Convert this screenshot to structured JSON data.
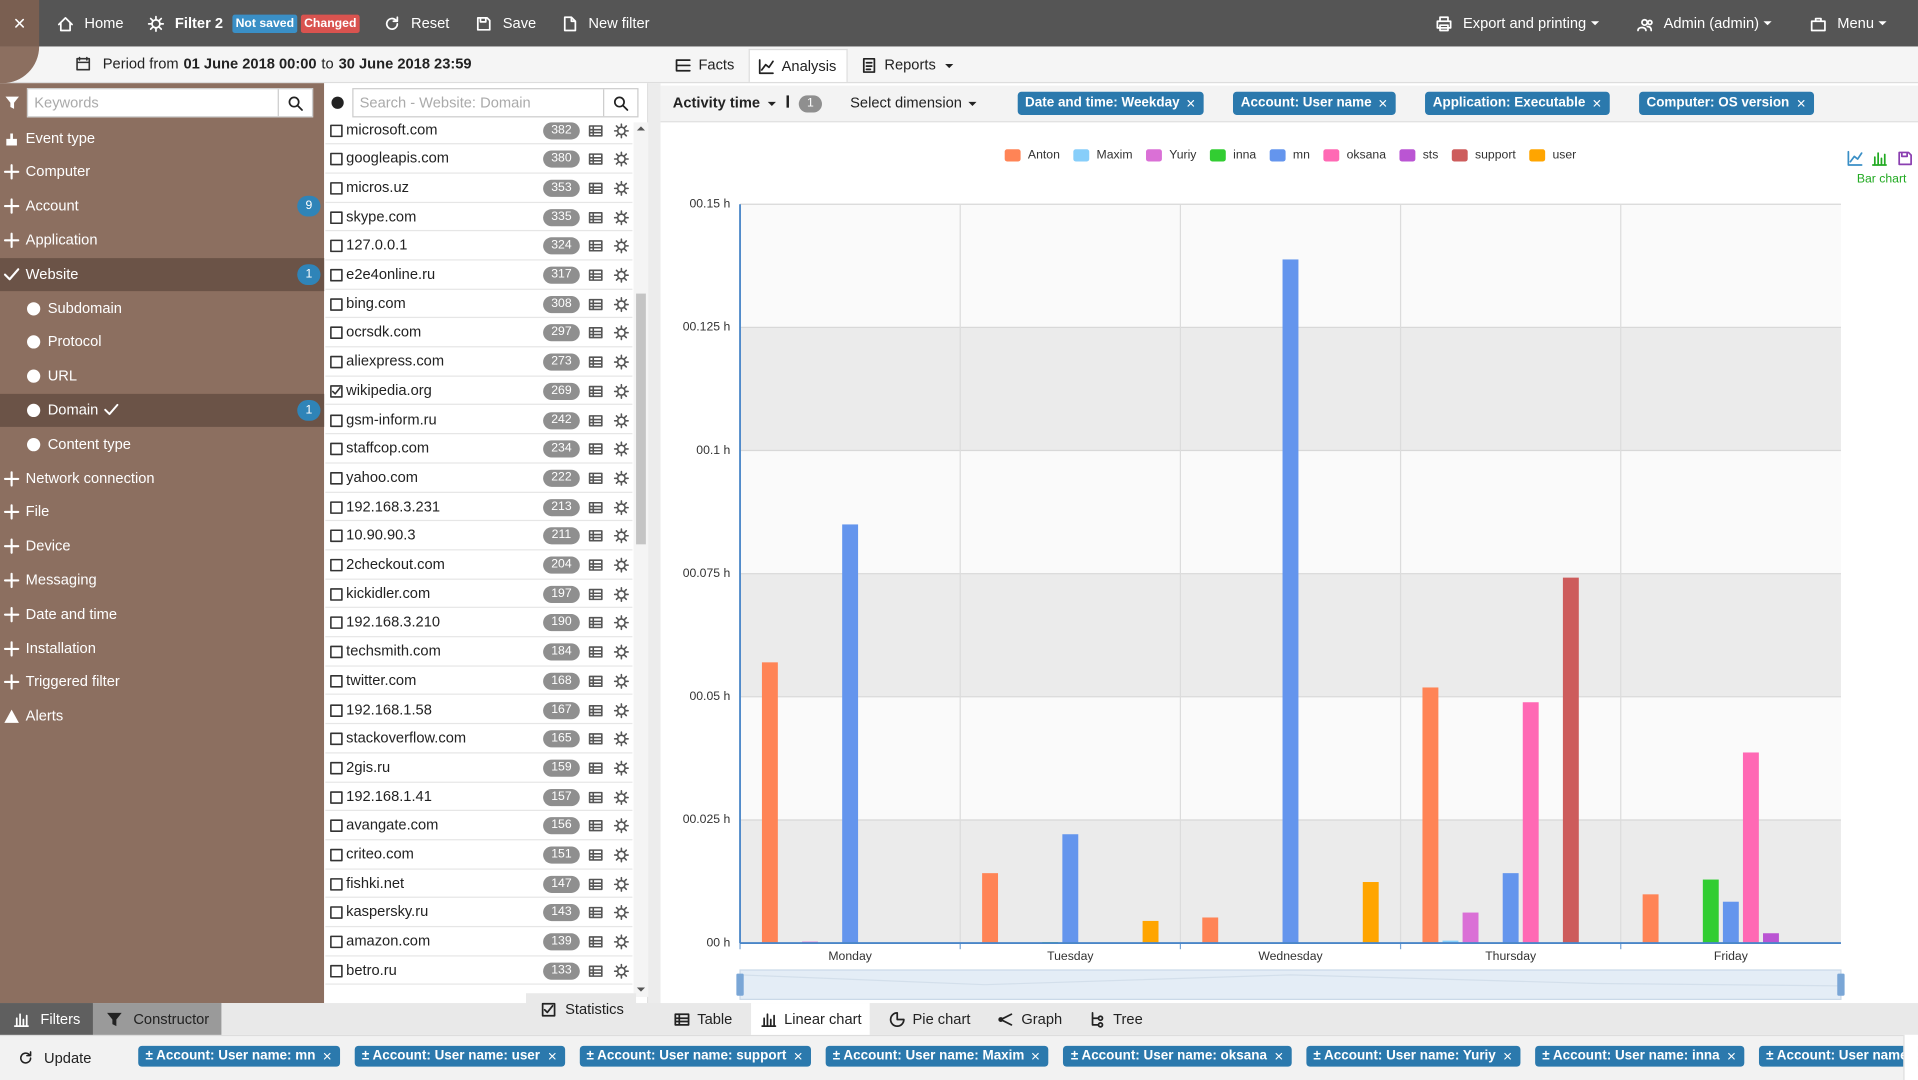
{
  "toolbar": {
    "home": "Home",
    "filter": "Filter 2",
    "not_saved": "Not saved",
    "changed": "Changed",
    "reset": "Reset",
    "save": "Save",
    "new_filter": "New filter",
    "export": "Export and printing",
    "admin": "Admin (admin)",
    "menu": "Menu"
  },
  "period": {
    "from": "Period from",
    "start": "01 June 2018 00:00",
    "to": "to",
    "end": "30 June 2018 23:59"
  },
  "sidebar": {
    "search_placeholder": "Keywords",
    "items": [
      {
        "label": "Event type"
      },
      {
        "label": "Computer"
      },
      {
        "label": "Account",
        "badge": 9
      },
      {
        "label": "Application"
      },
      {
        "label": "Website",
        "badge": 1,
        "checked": true,
        "children": [
          {
            "label": "Subdomain"
          },
          {
            "label": "Protocol"
          },
          {
            "label": "URL"
          },
          {
            "label": "Domain",
            "badge": 1,
            "checked": true
          },
          {
            "label": "Content type"
          }
        ]
      },
      {
        "label": "Network connection"
      },
      {
        "label": "File"
      },
      {
        "label": "Device"
      },
      {
        "label": "Messaging"
      },
      {
        "label": "Date and time"
      },
      {
        "label": "Installation"
      },
      {
        "label": "Triggered filter"
      },
      {
        "label": "Alerts"
      }
    ]
  },
  "domains": {
    "search_placeholder": "Search - Website: Domain",
    "items": [
      {
        "name": "microsoft.com",
        "count": 382
      },
      {
        "name": "googleapis.com",
        "count": 380
      },
      {
        "name": "micros.uz",
        "count": 353
      },
      {
        "name": "skype.com",
        "count": 335
      },
      {
        "name": "127.0.0.1",
        "count": 324
      },
      {
        "name": "e2e4online.ru",
        "count": 317
      },
      {
        "name": "bing.com",
        "count": 308
      },
      {
        "name": "ocrsdk.com",
        "count": 297
      },
      {
        "name": "aliexpress.com",
        "count": 273
      },
      {
        "name": "wikipedia.org",
        "count": 269,
        "checked": true
      },
      {
        "name": "gsm-inform.ru",
        "count": 242
      },
      {
        "name": "staffcop.com",
        "count": 234
      },
      {
        "name": "yahoo.com",
        "count": 222
      },
      {
        "name": "192.168.3.231",
        "count": 213
      },
      {
        "name": "10.90.90.3",
        "count": 211
      },
      {
        "name": "2checkout.com",
        "count": 204
      },
      {
        "name": "kickidler.com",
        "count": 197
      },
      {
        "name": "192.168.3.210",
        "count": 190
      },
      {
        "name": "techsmith.com",
        "count": 184
      },
      {
        "name": "twitter.com",
        "count": 168
      },
      {
        "name": "192.168.1.58",
        "count": 167
      },
      {
        "name": "stackoverflow.com",
        "count": 165
      },
      {
        "name": "2gis.ru",
        "count": 159
      },
      {
        "name": "192.168.1.41",
        "count": 157
      },
      {
        "name": "avangate.com",
        "count": 156
      },
      {
        "name": "criteo.com",
        "count": 151
      },
      {
        "name": "fishki.net",
        "count": 147
      },
      {
        "name": "kaspersky.ru",
        "count": 143
      },
      {
        "name": "amazon.com",
        "count": 139
      },
      {
        "name": "betro.ru",
        "count": 133
      }
    ]
  },
  "tabs": {
    "items": [
      "Facts",
      "Analysis",
      "Reports"
    ],
    "active": 1
  },
  "analysis": {
    "measure": "Activity time",
    "sort_count": 1,
    "select_dimension": "Select dimension",
    "dimensions": [
      "Date and time: Weekday",
      "Account: User name",
      "Application: Executable",
      "Computer: OS version"
    ]
  },
  "chart_data": {
    "type": "bar",
    "view_label": "Bar chart",
    "categories": [
      "Monday",
      "Tuesday",
      "Wednesday",
      "Thursday",
      "Friday"
    ],
    "series": [
      {
        "name": "Anton",
        "color": "#ff8456",
        "values": [
          0.057,
          0.0142,
          0.0052,
          0.0519,
          0.0099
        ]
      },
      {
        "name": "Maxim",
        "color": "#87cefa",
        "values": [
          0,
          0,
          0,
          0.0005,
          0
        ]
      },
      {
        "name": "Yuriy",
        "color": "#da70d6",
        "values": [
          0.0003,
          0,
          0,
          0.0062,
          0
        ]
      },
      {
        "name": "inna",
        "color": "#32cd32",
        "values": [
          0,
          0.0002,
          0,
          0,
          0.0129
        ]
      },
      {
        "name": "mn",
        "color": "#6495ed",
        "values": [
          0.085,
          0.0221,
          0.1388,
          0.0142,
          0.0084
        ]
      },
      {
        "name": "oksana",
        "color": "#ff69b4",
        "values": [
          0,
          0,
          0,
          0.0489,
          0.0387
        ]
      },
      {
        "name": "sts",
        "color": "#ba55d3",
        "values": [
          0,
          0,
          0,
          0,
          0.002
        ]
      },
      {
        "name": "support",
        "color": "#cd5c5c",
        "values": [
          0,
          0,
          0,
          0.0742,
          0
        ]
      },
      {
        "name": "user",
        "color": "#ffa500",
        "values": [
          0,
          0.0045,
          0.0124,
          0,
          0
        ]
      }
    ],
    "ylim": [
      0,
      0.15
    ],
    "yticks": [
      {
        "value": 0,
        "label": "00 h"
      },
      {
        "value": 0.025,
        "label": "00.025 h"
      },
      {
        "value": 0.05,
        "label": "00.05 h"
      },
      {
        "value": 0.075,
        "label": "00.075 h"
      },
      {
        "value": 0.1,
        "label": "00.1 h"
      },
      {
        "value": 0.125,
        "label": "00.125 h"
      },
      {
        "value": 0.15,
        "label": "00.15 h"
      }
    ],
    "grid": true,
    "legend": "top"
  },
  "view_tabs": {
    "items": [
      "Table",
      "Linear chart",
      "Pie chart",
      "Graph",
      "Tree"
    ],
    "active": 1
  },
  "panel_tabs": {
    "items": [
      "Filters",
      "Constructor"
    ],
    "active": 0
  },
  "statistics": "Statistics",
  "update": "Update",
  "applied_filters": [
    "± Account: User name: mn",
    "± Account: User name: user",
    "± Account: User name: support",
    "± Account: User name: Maxim",
    "± Account: User name: oksana",
    "± Account: User name: Yuriy",
    "± Account: User name: inna",
    "± Account: User name: sts"
  ]
}
